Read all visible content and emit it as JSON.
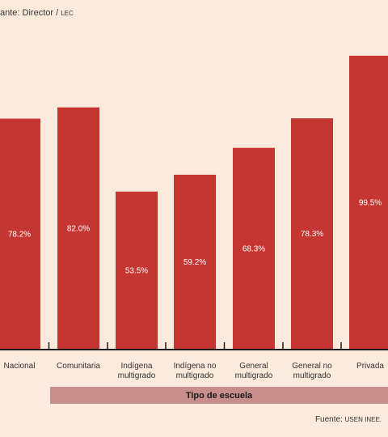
{
  "header": {
    "caption_main": "ante: Director /",
    "caption_small": "LEC"
  },
  "footer": {
    "source_label": "Fuente:",
    "source_small": "USEN INEE."
  },
  "chart_data": {
    "type": "bar",
    "categories": [
      [
        "Nacional"
      ],
      [
        "Comunitaria"
      ],
      [
        "Indígena",
        "multigrado"
      ],
      [
        "Indígena no",
        "multigrado"
      ],
      [
        "General",
        "multigrado"
      ],
      [
        "General no",
        "multigrado"
      ],
      [
        "Privada"
      ]
    ],
    "values": [
      78.2,
      82.0,
      53.5,
      59.2,
      68.3,
      78.3,
      99.5
    ],
    "value_labels": [
      "78.2%",
      "82.0%",
      "53.5%",
      "59.2%",
      "68.3%",
      "78.3%",
      "99.5%"
    ],
    "xlabel": "Tipo de escuela",
    "bar_color": "#c53632",
    "ylim": [
      0,
      100
    ]
  }
}
